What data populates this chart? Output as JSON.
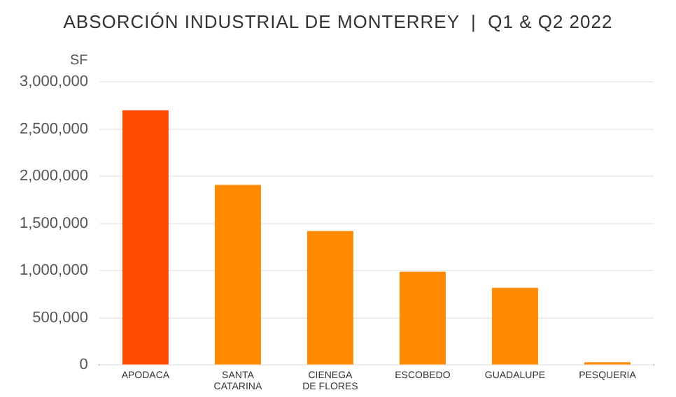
{
  "chart_data": {
    "type": "bar",
    "title": "ABSORCIÓN INDUSTRIAL DE MONTERREY  |  Q1 & Q2 2022",
    "ylabel": "SF",
    "categories": [
      "APODACA",
      "SANTA CATARINA",
      "CIENEGA DE FLORES",
      "ESCOBEDO",
      "GUADALUPE",
      "PESQUERIA"
    ],
    "values": [
      2700000,
      1910000,
      1420000,
      990000,
      820000,
      30000
    ],
    "colors": [
      "#ff4a00",
      "#ff8a00",
      "#ff8a00",
      "#ff8a00",
      "#ff8a00",
      "#ff8a00"
    ],
    "ylim": [
      0,
      3000000
    ],
    "yticks": [
      0,
      {
        "value": 500000,
        "label": "500,000"
      },
      {
        "value": 1000000,
        "label": "1,000,000"
      },
      {
        "value": 1500000,
        "label": "1,500,000"
      },
      {
        "value": 2000000,
        "label": "2,000,000"
      },
      {
        "value": 2500000,
        "label": "2,500,000"
      },
      {
        "value": 3000000,
        "label": "3,000,000"
      }
    ],
    "grid": "y"
  }
}
